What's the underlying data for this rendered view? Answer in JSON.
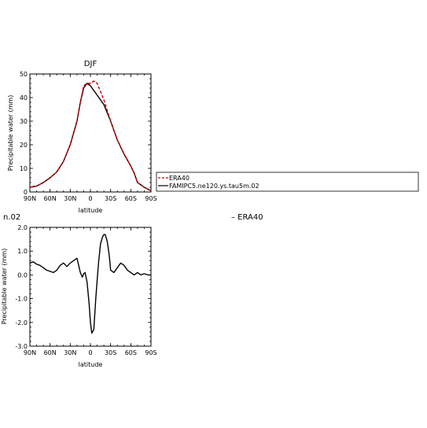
{
  "chart_data": [
    {
      "type": "line",
      "title": "DJF",
      "xlabel": "latitude",
      "ylabel": "Precipitable water (mm)",
      "xlim": [
        90,
        -90
      ],
      "ylim": [
        0,
        50
      ],
      "x_ticks": [
        90,
        60,
        30,
        0,
        -30,
        -60,
        -90
      ],
      "x_tick_labels": [
        "90N",
        "60N",
        "30N",
        "0",
        "30S",
        "60S",
        "90S"
      ],
      "y_ticks": [
        0,
        10,
        20,
        30,
        40,
        50
      ],
      "y_tick_labels": [
        "0",
        "10",
        "20",
        "30",
        "40",
        "50"
      ],
      "x": [
        90,
        80,
        70,
        60,
        50,
        40,
        30,
        20,
        15,
        10,
        5,
        0,
        -5,
        -10,
        -20,
        -30,
        -40,
        -50,
        -60,
        -65,
        -70,
        -80,
        -90
      ],
      "series": [
        {
          "name": "ERA40",
          "color": "#cc0000",
          "dash": "dashed",
          "values": [
            2,
            2.5,
            4,
            6,
            8.5,
            13,
            20,
            30,
            38,
            45,
            46,
            46,
            47,
            46,
            39,
            30,
            22,
            16,
            11,
            8,
            4,
            2,
            0.5
          ]
        },
        {
          "name": "FAMIPC5.ne120.ys.tau5m.02",
          "color": "#000000",
          "dash": "solid",
          "values": [
            2,
            2.5,
            4,
            6,
            8.5,
            13,
            20,
            30,
            38,
            44,
            46,
            45,
            43,
            41,
            37,
            30,
            22,
            16,
            11,
            8,
            4,
            2,
            0.5
          ]
        }
      ],
      "legend_placement": "right"
    },
    {
      "type": "line",
      "title": "",
      "title_fragment_left": "n.02",
      "title_fragment_right": "– ERA40",
      "xlabel": "latitude",
      "ylabel": "Precipitable water (mm)",
      "xlim": [
        90,
        -90
      ],
      "ylim": [
        -3.0,
        2.0
      ],
      "x_ticks": [
        90,
        60,
        30,
        0,
        -30,
        -60,
        -90
      ],
      "x_tick_labels": [
        "90N",
        "60N",
        "30N",
        "0",
        "30S",
        "60S",
        "90S"
      ],
      "y_ticks": [
        2.0,
        1.0,
        0.0,
        -1.0,
        -2.0,
        -3.0
      ],
      "y_tick_labels": [
        "2.0",
        "1.0",
        "0.0",
        "-1.0",
        "-2.0",
        "-3.0"
      ],
      "x": [
        90,
        85,
        80,
        75,
        70,
        65,
        60,
        55,
        50,
        45,
        40,
        35,
        30,
        25,
        20,
        15,
        12,
        10,
        8,
        5,
        2,
        0,
        -2,
        -5,
        -8,
        -10,
        -12,
        -15,
        -18,
        -20,
        -22,
        -25,
        -28,
        -30,
        -35,
        -40,
        -45,
        -50,
        -55,
        -60,
        -65,
        -70,
        -75,
        -80,
        -85,
        -90
      ],
      "series": [
        {
          "name": "",
          "color": "#000000",
          "dash": "solid",
          "values": [
            0.5,
            0.55,
            0.45,
            0.4,
            0.3,
            0.2,
            0.15,
            0.1,
            0.2,
            0.4,
            0.5,
            0.35,
            0.5,
            0.6,
            0.7,
            0.1,
            -0.1,
            0.05,
            0.1,
            -0.3,
            -1.2,
            -2.0,
            -2.45,
            -2.3,
            -1.0,
            -0.2,
            0.5,
            1.3,
            1.6,
            1.7,
            1.7,
            1.4,
            0.8,
            0.2,
            0.1,
            0.3,
            0.5,
            0.4,
            0.2,
            0.1,
            0.0,
            0.1,
            0.0,
            0.05,
            0.0,
            0.0
          ]
        }
      ]
    }
  ]
}
